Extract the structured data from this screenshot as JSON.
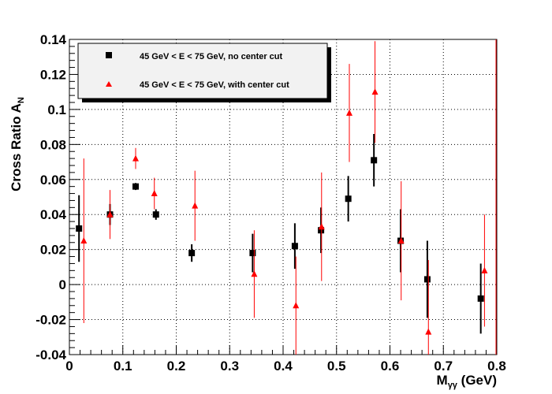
{
  "chart_data": {
    "type": "scatter",
    "title": "",
    "xlabel": "M",
    "xlabel_sub": "γγ",
    "xlabel_unit": " (GeV)",
    "ylabel": "Cross Ratio A",
    "ylabel_sub": "N",
    "xlim": [
      0,
      0.8
    ],
    "ylim": [
      -0.04,
      0.14
    ],
    "x_ticks": [
      "0",
      "0.1",
      "0.2",
      "0.3",
      "0.4",
      "0.5",
      "0.6",
      "0.7",
      "0.8"
    ],
    "y_ticks": [
      "-0.04",
      "-0.02",
      "0",
      "0.02",
      "0.04",
      "0.06",
      "0.08",
      "0.1",
      "0.12",
      "0.14"
    ],
    "grid": true,
    "legend_position": "top-left",
    "series": [
      {
        "name": "45 GeV < E < 75 GeV, no center cut",
        "marker": "square",
        "color": "#000000",
        "x": [
          0.018,
          0.076,
          0.124,
          0.162,
          0.229,
          0.343,
          0.422,
          0.471,
          0.522,
          0.57,
          0.62,
          0.67,
          0.77
        ],
        "y": [
          0.032,
          0.04,
          0.056,
          0.04,
          0.018,
          0.018,
          0.022,
          0.031,
          0.049,
          0.071,
          0.025,
          0.003,
          -0.008
        ],
        "err": [
          0.019,
          0.006,
          0.002,
          0.003,
          0.005,
          0.011,
          0.013,
          0.013,
          0.013,
          0.015,
          0.018,
          0.022,
          0.02
        ]
      },
      {
        "name": "45 GeV < E < 75 GeV, with center cut",
        "marker": "triangle",
        "color": "#ff0000",
        "x": [
          0.027,
          0.076,
          0.124,
          0.159,
          0.235,
          0.346,
          0.424,
          0.472,
          0.524,
          0.572,
          0.621,
          0.672,
          0.777
        ],
        "y": [
          0.025,
          0.04,
          0.072,
          0.052,
          0.045,
          0.006,
          -0.012,
          0.033,
          0.098,
          0.11,
          0.025,
          -0.027,
          0.008
        ],
        "err": [
          0.047,
          0.014,
          0.006,
          0.009,
          0.02,
          0.025,
          0.028,
          0.031,
          0.028,
          0.029,
          0.034,
          0.041,
          0.032
        ]
      }
    ]
  }
}
